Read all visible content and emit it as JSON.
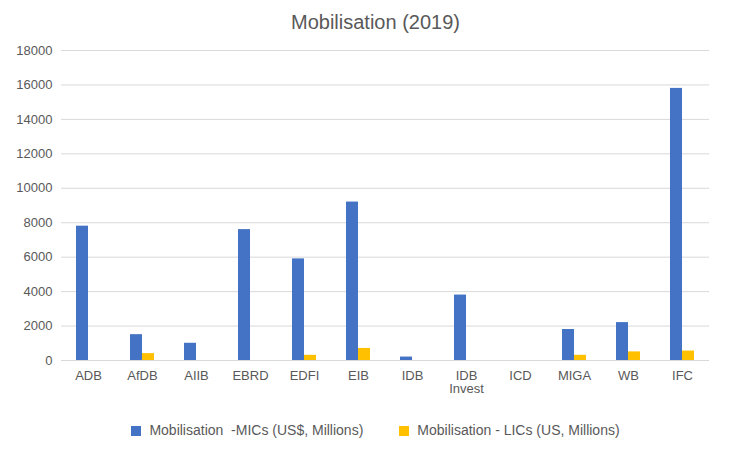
{
  "chart_data": {
    "type": "bar",
    "title": "Mobilisation (2019)",
    "categories": [
      "ADB",
      "AfDB",
      "AIIB",
      "EBRD",
      "EDFI",
      "EIB",
      "IDB",
      "IDB Invest",
      "ICD",
      "MIGA",
      "WB",
      "IFC"
    ],
    "series": [
      {
        "name": "Mobilisation  -MICs (US$, Millions)",
        "color": "#4472c4",
        "values": [
          7800,
          1500,
          1000,
          7600,
          5900,
          9200,
          200,
          3800,
          0,
          1800,
          2200,
          15800
        ]
      },
      {
        "name": "Mobilisation - LICs (US, Millions)",
        "color": "#ffc000",
        "values": [
          0,
          400,
          0,
          0,
          300,
          700,
          0,
          0,
          0,
          300,
          500,
          550
        ]
      }
    ],
    "ylim": [
      0,
      18000
    ],
    "yticks": [
      0,
      2000,
      4000,
      6000,
      8000,
      10000,
      12000,
      14000,
      16000,
      18000
    ],
    "grid": true,
    "legend": "bottom"
  }
}
